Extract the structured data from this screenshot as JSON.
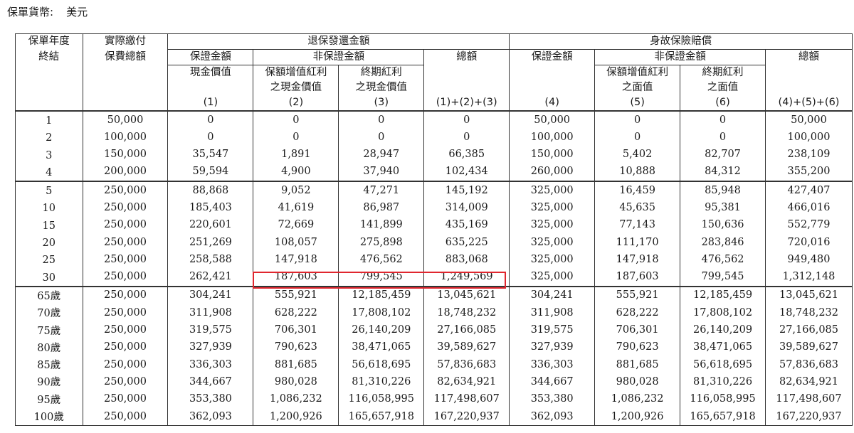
{
  "currency": {
    "label": "保單貨幣:",
    "value": "美元"
  },
  "header": {
    "col_year": [
      "保單年度",
      "終結"
    ],
    "col_premium": [
      "實際繳付",
      "保費總額"
    ],
    "surrender_group": "退保發還金額",
    "death_group": "身故保險賠償",
    "guaranteed": "保證金額",
    "non_guaranteed": "非保證金額",
    "total": "總額",
    "cash_value": "現金價值",
    "rev_bonus_cash": [
      "保額增值紅利",
      "之現金價值"
    ],
    "term_bonus_cash": [
      "終期紅利",
      "之現金價值"
    ],
    "rev_bonus_face": [
      "保額增值紅利",
      "之面值"
    ],
    "term_bonus_face": [
      "終期紅利",
      "之面值"
    ],
    "n1": "(1)",
    "n2": "(2)",
    "n3": "(3)",
    "n123": "(1)+(2)+(3)",
    "n4": "(4)",
    "n5": "(5)",
    "n6": "(6)",
    "n456": "(4)+(5)+(6)"
  },
  "groups": [
    [
      [
        "1",
        "50,000",
        "0",
        "0",
        "0",
        "0",
        "50,000",
        "0",
        "0",
        "50,000"
      ],
      [
        "2",
        "100,000",
        "0",
        "0",
        "0",
        "0",
        "100,000",
        "0",
        "0",
        "100,000"
      ],
      [
        "3",
        "150,000",
        "35,547",
        "1,891",
        "28,947",
        "66,385",
        "150,000",
        "5,402",
        "82,707",
        "238,109"
      ],
      [
        "4",
        "200,000",
        "59,594",
        "4,900",
        "37,940",
        "102,434",
        "260,000",
        "10,888",
        "84,312",
        "355,200"
      ]
    ],
    [
      [
        "5",
        "250,000",
        "88,868",
        "9,052",
        "47,271",
        "145,192",
        "325,000",
        "16,459",
        "85,948",
        "427,407"
      ],
      [
        "10",
        "250,000",
        "185,403",
        "41,619",
        "86,987",
        "314,009",
        "325,000",
        "45,635",
        "95,381",
        "466,016"
      ],
      [
        "15",
        "250,000",
        "220,601",
        "72,669",
        "141,899",
        "435,169",
        "325,000",
        "77,143",
        "150,636",
        "552,779"
      ],
      [
        "20",
        "250,000",
        "251,269",
        "108,057",
        "275,898",
        "635,225",
        "325,000",
        "111,170",
        "283,846",
        "720,016"
      ],
      [
        "25",
        "250,000",
        "258,588",
        "147,918",
        "476,562",
        "883,068",
        "325,000",
        "147,918",
        "476,562",
        "949,480"
      ],
      [
        "30",
        "250,000",
        "262,421",
        "187,603",
        "799,545",
        "1,249,569",
        "325,000",
        "187,603",
        "799,545",
        "1,312,148"
      ]
    ],
    [
      [
        "65歲",
        "250,000",
        "304,241",
        "555,921",
        "12,185,459",
        "13,045,621",
        "304,241",
        "555,921",
        "12,185,459",
        "13,045,621"
      ],
      [
        "70歲",
        "250,000",
        "311,908",
        "628,222",
        "17,808,102",
        "18,748,232",
        "311,908",
        "628,222",
        "17,808,102",
        "18,748,232"
      ],
      [
        "75歲",
        "250,000",
        "319,575",
        "706,301",
        "26,140,209",
        "27,166,085",
        "319,575",
        "706,301",
        "26,140,209",
        "27,166,085"
      ],
      [
        "80歲",
        "250,000",
        "327,939",
        "790,623",
        "38,471,065",
        "39,589,627",
        "327,939",
        "790,623",
        "38,471,065",
        "39,589,627"
      ],
      [
        "85歲",
        "250,000",
        "336,303",
        "881,685",
        "56,618,695",
        "57,836,683",
        "336,303",
        "881,685",
        "56,618,695",
        "57,836,683"
      ],
      [
        "90歲",
        "250,000",
        "344,667",
        "980,028",
        "81,310,226",
        "82,634,921",
        "344,667",
        "980,028",
        "81,310,226",
        "82,634,921"
      ],
      [
        "95歲",
        "250,000",
        "353,380",
        "1,086,232",
        "116,058,995",
        "117,498,607",
        "353,380",
        "1,086,232",
        "116,058,995",
        "117,498,607"
      ],
      [
        "100歲",
        "250,000",
        "362,093",
        "1,200,926",
        "165,657,918",
        "167,220,937",
        "362,093",
        "1,200,926",
        "165,657,918",
        "167,220,937"
      ]
    ]
  ],
  "highlight_color": "#e0262e"
}
